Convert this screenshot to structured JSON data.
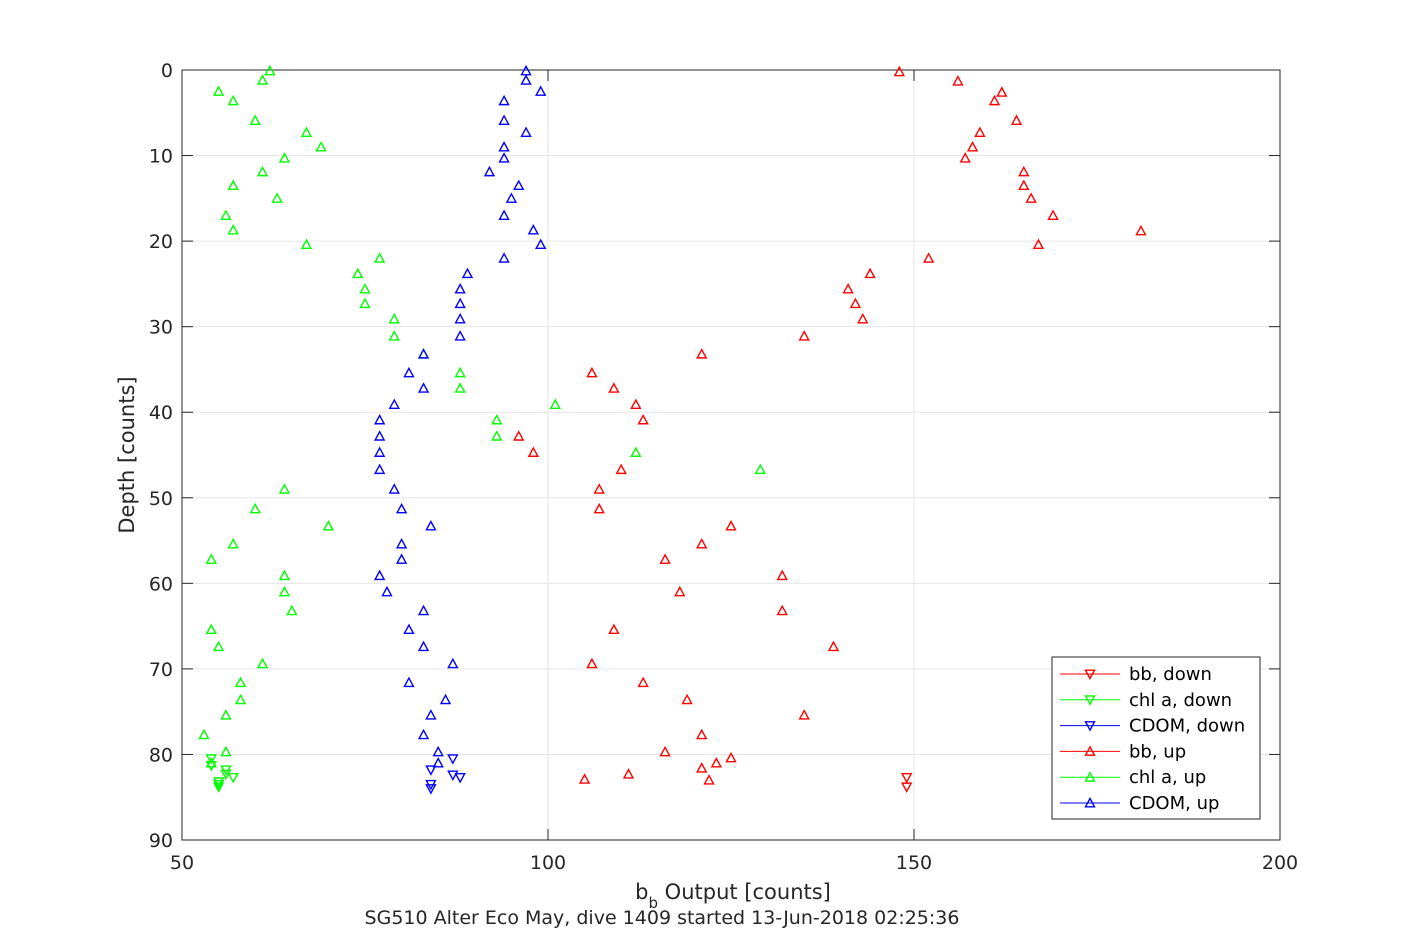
{
  "chart_data": {
    "type": "scatter",
    "xlabel_main": "b",
    "xlabel_sub": "b",
    "xlabel_rest": " Output [counts]",
    "ylabel": "Depth [counts]",
    "subtitle": "SG510 Alter Eco May, dive 1409 started 13-Jun-2018 02:25:36",
    "xlim": [
      50,
      200
    ],
    "ylim": [
      0,
      90
    ],
    "y_reversed": true,
    "grid": true,
    "legend_position": "bottom-right",
    "x_ticks": [
      50,
      100,
      150,
      200
    ],
    "y_ticks": [
      0,
      10,
      20,
      30,
      40,
      50,
      60,
      70,
      80,
      90
    ],
    "series": [
      {
        "name": "bb, down",
        "color": "#ff0000",
        "marker": "triangle-down",
        "points": [
          [
            149,
            82.7
          ],
          [
            149,
            83.8
          ]
        ]
      },
      {
        "name": "chl a, down",
        "color": "#00ff00",
        "marker": "triangle-down",
        "points": [
          [
            54,
            80.5
          ],
          [
            54,
            81.3
          ],
          [
            56,
            81.8
          ],
          [
            56,
            82.3
          ],
          [
            57,
            82.7
          ],
          [
            55,
            83.2
          ],
          [
            55,
            83.5
          ],
          [
            55,
            83.8
          ]
        ]
      },
      {
        "name": "CDOM, down",
        "color": "#0000ff",
        "marker": "triangle-down",
        "points": [
          [
            87,
            80.5
          ],
          [
            84,
            81.8
          ],
          [
            87,
            82.4
          ],
          [
            88,
            82.7
          ],
          [
            84,
            83.5
          ],
          [
            84,
            84.0
          ]
        ]
      },
      {
        "name": "bb, up",
        "color": "#ff0000",
        "marker": "triangle-up",
        "points": [
          [
            148,
            0.2
          ],
          [
            156,
            1.3
          ],
          [
            162,
            2.6
          ],
          [
            161,
            3.6
          ],
          [
            164,
            5.9
          ],
          [
            159,
            7.3
          ],
          [
            158,
            9.0
          ],
          [
            157,
            10.3
          ],
          [
            165,
            11.9
          ],
          [
            165,
            13.5
          ],
          [
            166,
            15.0
          ],
          [
            169,
            17.0
          ],
          [
            181,
            18.8
          ],
          [
            167,
            20.4
          ],
          [
            152,
            22.0
          ],
          [
            144,
            23.8
          ],
          [
            141,
            25.6
          ],
          [
            142,
            27.3
          ],
          [
            143,
            29.1
          ],
          [
            135,
            31.1
          ],
          [
            121,
            33.2
          ],
          [
            106,
            35.4
          ],
          [
            109,
            37.2
          ],
          [
            112,
            39.1
          ],
          [
            113,
            40.9
          ],
          [
            96,
            42.8
          ],
          [
            98,
            44.7
          ],
          [
            110,
            46.7
          ],
          [
            107,
            49.0
          ],
          [
            107,
            51.3
          ],
          [
            125,
            53.3
          ],
          [
            121,
            55.4
          ],
          [
            116,
            57.2
          ],
          [
            132,
            59.1
          ],
          [
            118,
            61.0
          ],
          [
            132,
            63.2
          ],
          [
            109,
            65.4
          ],
          [
            139,
            67.4
          ],
          [
            106,
            69.4
          ],
          [
            113,
            71.6
          ],
          [
            119,
            73.6
          ],
          [
            135,
            75.4
          ],
          [
            121,
            77.7
          ],
          [
            116,
            79.7
          ],
          [
            125,
            80.4
          ],
          [
            123,
            81.0
          ],
          [
            121,
            81.6
          ],
          [
            111,
            82.3
          ],
          [
            105,
            82.9
          ],
          [
            122,
            83.0
          ]
        ]
      },
      {
        "name": "chl a, up",
        "color": "#00ff00",
        "marker": "triangle-up",
        "points": [
          [
            62,
            0.1
          ],
          [
            61,
            1.2
          ],
          [
            55,
            2.5
          ],
          [
            57,
            3.6
          ],
          [
            60,
            5.9
          ],
          [
            67,
            7.3
          ],
          [
            69,
            9.0
          ],
          [
            64,
            10.3
          ],
          [
            61,
            11.9
          ],
          [
            57,
            13.5
          ],
          [
            63,
            15.0
          ],
          [
            56,
            17.0
          ],
          [
            57,
            18.7
          ],
          [
            67,
            20.4
          ],
          [
            77,
            22.0
          ],
          [
            74,
            23.8
          ],
          [
            75,
            25.6
          ],
          [
            75,
            27.3
          ],
          [
            79,
            29.1
          ],
          [
            79,
            31.1
          ],
          [
            83,
            33.2
          ],
          [
            88,
            35.4
          ],
          [
            88,
            37.2
          ],
          [
            101,
            39.1
          ],
          [
            93,
            40.9
          ],
          [
            93,
            42.8
          ],
          [
            112,
            44.7
          ],
          [
            129,
            46.7
          ],
          [
            64,
            49.0
          ],
          [
            60,
            51.3
          ],
          [
            70,
            53.3
          ],
          [
            57,
            55.4
          ],
          [
            54,
            57.2
          ],
          [
            64,
            59.1
          ],
          [
            64,
            61.0
          ],
          [
            65,
            63.2
          ],
          [
            54,
            65.4
          ],
          [
            55,
            67.4
          ],
          [
            61,
            69.4
          ],
          [
            58,
            71.6
          ],
          [
            58,
            73.6
          ],
          [
            56,
            75.4
          ],
          [
            53,
            77.7
          ],
          [
            56,
            79.7
          ],
          [
            54,
            81.0
          ]
        ]
      },
      {
        "name": "CDOM, up",
        "color": "#0000ff",
        "marker": "triangle-up",
        "points": [
          [
            97,
            0.1
          ],
          [
            97,
            1.2
          ],
          [
            99,
            2.5
          ],
          [
            94,
            3.6
          ],
          [
            94,
            5.9
          ],
          [
            97,
            7.3
          ],
          [
            94,
            9.0
          ],
          [
            94,
            10.3
          ],
          [
            92,
            11.9
          ],
          [
            96,
            13.5
          ],
          [
            95,
            15.0
          ],
          [
            94,
            17.0
          ],
          [
            98,
            18.7
          ],
          [
            99,
            20.4
          ],
          [
            94,
            22.0
          ],
          [
            89,
            23.8
          ],
          [
            88,
            25.6
          ],
          [
            88,
            27.3
          ],
          [
            88,
            29.1
          ],
          [
            88,
            31.1
          ],
          [
            83,
            33.2
          ],
          [
            81,
            35.4
          ],
          [
            83,
            37.2
          ],
          [
            79,
            39.1
          ],
          [
            77,
            40.9
          ],
          [
            77,
            42.8
          ],
          [
            77,
            44.7
          ],
          [
            77,
            46.7
          ],
          [
            79,
            49.0
          ],
          [
            80,
            51.3
          ],
          [
            84,
            53.3
          ],
          [
            80,
            55.4
          ],
          [
            80,
            57.2
          ],
          [
            77,
            59.1
          ],
          [
            78,
            61.0
          ],
          [
            83,
            63.2
          ],
          [
            81,
            65.4
          ],
          [
            83,
            67.4
          ],
          [
            87,
            69.4
          ],
          [
            81,
            71.6
          ],
          [
            86,
            73.6
          ],
          [
            84,
            75.4
          ],
          [
            83,
            77.7
          ],
          [
            85,
            79.7
          ],
          [
            85,
            81.0
          ]
        ]
      }
    ]
  }
}
